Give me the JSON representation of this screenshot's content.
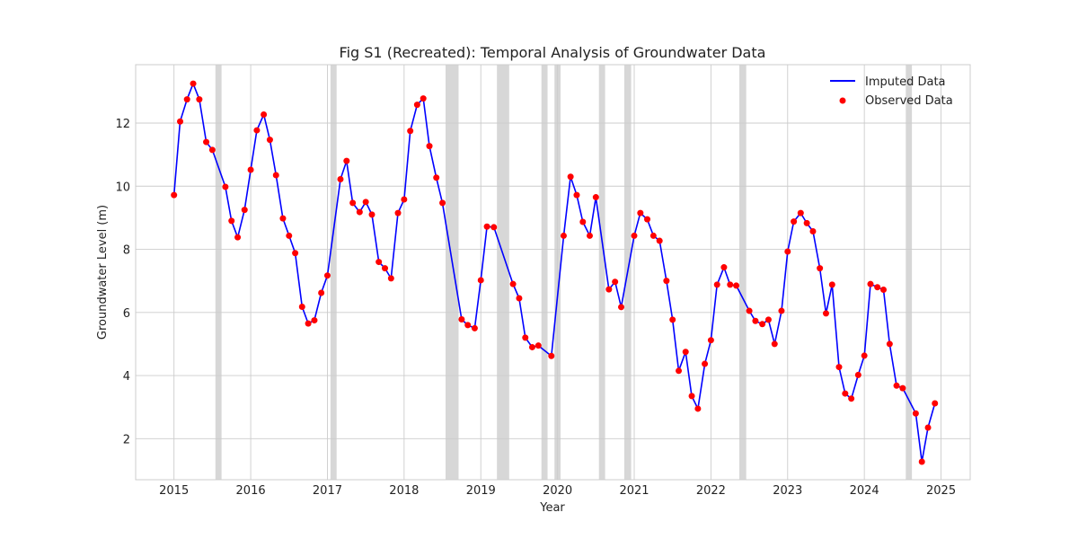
{
  "chart_data": {
    "type": "line",
    "title": "Fig S1 (Recreated): Temporal Analysis of Groundwater Data",
    "xlabel": "Year",
    "ylabel": "Groundwater Level (m)",
    "xlim": [
      2014.5,
      2025.38
    ],
    "ylim": [
      0.7,
      13.85
    ],
    "x_ticks": [
      2015,
      2016,
      2017,
      2018,
      2019,
      2020,
      2021,
      2022,
      2023,
      2024,
      2025
    ],
    "y_ticks": [
      2,
      4,
      6,
      8,
      10,
      12
    ],
    "grid": true,
    "legend_position": "top-right",
    "colors": {
      "line": "#0000ff",
      "points": "#ff0000",
      "gaps": "#d3d3d3"
    },
    "series": [
      {
        "name": "Imputed Data",
        "style": "line"
      },
      {
        "name": "Observed Data",
        "style": "scatter"
      }
    ],
    "missing_periods": [
      [
        2015.54,
        2015.62
      ],
      [
        2017.04,
        2017.12
      ],
      [
        2018.54,
        2018.71
      ],
      [
        2019.21,
        2019.37
      ],
      [
        2019.79,
        2019.87
      ],
      [
        2019.96,
        2020.04
      ],
      [
        2020.54,
        2020.62
      ],
      [
        2020.87,
        2020.96
      ],
      [
        2022.37,
        2022.46
      ],
      [
        2024.54,
        2024.62
      ]
    ],
    "observed": [
      [
        2015.0,
        9.72
      ],
      [
        2015.08,
        12.05
      ],
      [
        2015.17,
        12.75
      ],
      [
        2015.25,
        13.25
      ],
      [
        2015.33,
        12.75
      ],
      [
        2015.42,
        11.4
      ],
      [
        2015.5,
        11.15
      ],
      [
        2015.67,
        9.98
      ],
      [
        2015.75,
        8.9
      ],
      [
        2015.83,
        8.38
      ],
      [
        2015.92,
        9.25
      ],
      [
        2016.0,
        10.52
      ],
      [
        2016.08,
        11.77
      ],
      [
        2016.17,
        12.27
      ],
      [
        2016.25,
        11.47
      ],
      [
        2016.33,
        10.35
      ],
      [
        2016.42,
        8.98
      ],
      [
        2016.5,
        8.43
      ],
      [
        2016.58,
        7.88
      ],
      [
        2016.67,
        6.18
      ],
      [
        2016.75,
        5.65
      ],
      [
        2016.83,
        5.75
      ],
      [
        2016.92,
        6.62
      ],
      [
        2017.0,
        7.17
      ],
      [
        2017.17,
        10.22
      ],
      [
        2017.25,
        10.8
      ],
      [
        2017.33,
        9.47
      ],
      [
        2017.42,
        9.18
      ],
      [
        2017.5,
        9.5
      ],
      [
        2017.58,
        9.1
      ],
      [
        2017.67,
        7.6
      ],
      [
        2017.75,
        7.4
      ],
      [
        2017.83,
        7.08
      ],
      [
        2017.92,
        9.15
      ],
      [
        2018.0,
        9.58
      ],
      [
        2018.08,
        11.75
      ],
      [
        2018.17,
        12.58
      ],
      [
        2018.25,
        12.78
      ],
      [
        2018.33,
        11.27
      ],
      [
        2018.42,
        10.27
      ],
      [
        2018.5,
        9.47
      ],
      [
        2018.75,
        5.78
      ],
      [
        2018.83,
        5.6
      ],
      [
        2018.92,
        5.5
      ],
      [
        2019.0,
        7.02
      ],
      [
        2019.08,
        8.72
      ],
      [
        2019.17,
        8.7
      ],
      [
        2019.42,
        6.9
      ],
      [
        2019.5,
        6.45
      ],
      [
        2019.58,
        5.2
      ],
      [
        2019.67,
        4.9
      ],
      [
        2019.75,
        4.95
      ],
      [
        2019.92,
        4.62
      ],
      [
        2020.08,
        8.43
      ],
      [
        2020.17,
        10.3
      ],
      [
        2020.25,
        9.72
      ],
      [
        2020.33,
        8.87
      ],
      [
        2020.42,
        8.43
      ],
      [
        2020.5,
        9.65
      ],
      [
        2020.67,
        6.73
      ],
      [
        2020.75,
        6.97
      ],
      [
        2020.83,
        6.17
      ],
      [
        2021.0,
        8.43
      ],
      [
        2021.08,
        9.15
      ],
      [
        2021.17,
        8.95
      ],
      [
        2021.25,
        8.43
      ],
      [
        2021.33,
        8.27
      ],
      [
        2021.42,
        7.0
      ],
      [
        2021.5,
        5.77
      ],
      [
        2021.58,
        4.15
      ],
      [
        2021.67,
        4.75
      ],
      [
        2021.75,
        3.35
      ],
      [
        2021.83,
        2.95
      ],
      [
        2021.92,
        4.37
      ],
      [
        2022.0,
        5.12
      ],
      [
        2022.08,
        6.88
      ],
      [
        2022.17,
        7.43
      ],
      [
        2022.25,
        6.88
      ],
      [
        2022.33,
        6.85
      ],
      [
        2022.5,
        6.05
      ],
      [
        2022.58,
        5.73
      ],
      [
        2022.67,
        5.63
      ],
      [
        2022.75,
        5.77
      ],
      [
        2022.83,
        5.0
      ],
      [
        2022.92,
        6.05
      ],
      [
        2023.0,
        7.93
      ],
      [
        2023.08,
        8.88
      ],
      [
        2023.17,
        9.15
      ],
      [
        2023.25,
        8.83
      ],
      [
        2023.33,
        8.57
      ],
      [
        2023.42,
        7.4
      ],
      [
        2023.5,
        5.97
      ],
      [
        2023.58,
        6.88
      ],
      [
        2023.67,
        4.27
      ],
      [
        2023.75,
        3.43
      ],
      [
        2023.83,
        3.27
      ],
      [
        2023.92,
        4.02
      ],
      [
        2024.0,
        4.63
      ],
      [
        2024.08,
        6.9
      ],
      [
        2024.17,
        6.8
      ],
      [
        2024.25,
        6.72
      ],
      [
        2024.33,
        5.0
      ],
      [
        2024.42,
        3.68
      ],
      [
        2024.5,
        3.6
      ],
      [
        2024.67,
        2.8
      ],
      [
        2024.75,
        1.27
      ],
      [
        2024.83,
        2.35
      ],
      [
        2024.92,
        3.12
      ]
    ]
  }
}
